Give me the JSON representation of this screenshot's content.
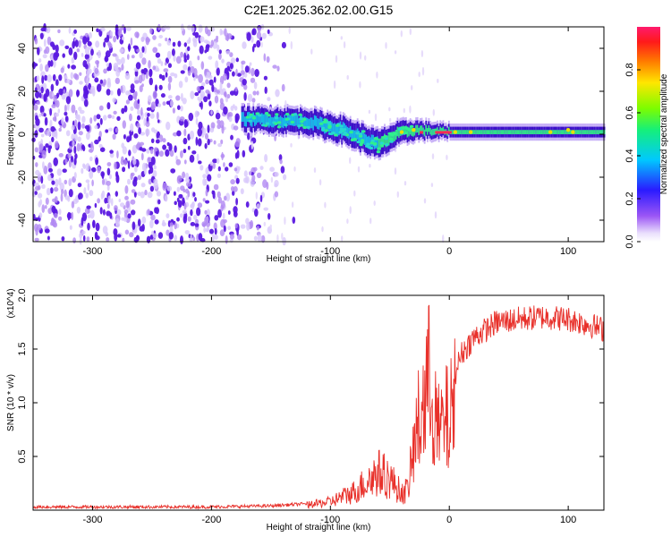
{
  "title": "C2E1.2025.362.02.00.G15",
  "colors": {
    "snr_line": "#e8302a",
    "band_core": "#2fe08a",
    "band_edge": "#3b10c8",
    "noise_dark": "#5a18e0",
    "noise_light": "#d8c8fb",
    "peak": "#ff2a55"
  },
  "chart_data": [
    {
      "type": "heatmap",
      "name_id": "spectrogram",
      "xlabel": "Height of straight line (km)",
      "ylabel": "Frequency (Hz)",
      "xlim": [
        -350,
        130
      ],
      "ylim": [
        -50,
        50
      ],
      "xticks": [
        -300,
        -200,
        -100,
        0,
        100
      ],
      "yticks": [
        -40,
        -20,
        0,
        20,
        40
      ],
      "colorbar": {
        "label": "Normalized spectral amplitude",
        "range": [
          0,
          1
        ],
        "ticks": [
          0.0,
          0.2,
          0.4,
          0.6,
          0.8
        ],
        "colormap": "rainbow (white → violet → blue → cyan → green → yellow → red → magenta)"
      },
      "features": {
        "noise_region_x": [
          -350,
          -170
        ],
        "band_start_x": -175,
        "band_center_freq_at": [
          [
            -170,
            7
          ],
          [
            -120,
            6
          ],
          [
            -90,
            2
          ],
          [
            -60,
            -5
          ],
          [
            -45,
            0
          ],
          [
            -30,
            2
          ],
          [
            0,
            1
          ],
          [
            130,
            1
          ]
        ],
        "band_half_width_hz": [
          [
            -170,
            5
          ],
          [
            -60,
            6
          ],
          [
            -30,
            4
          ],
          [
            0,
            2.5
          ],
          [
            130,
            2.5
          ]
        ]
      }
    },
    {
      "type": "line",
      "name_id": "snr",
      "xlabel": "Height of straight line (km)",
      "ylabel": "SNR (10 * v/v)",
      "ylabel_scale": "(x10^4)",
      "xlim": [
        -350,
        130
      ],
      "ylim": [
        0,
        2.0
      ],
      "xticks": [
        -300,
        -200,
        -100,
        0,
        100
      ],
      "yticks": [
        0.5,
        1.0,
        1.5,
        2.0
      ],
      "ytick_labels": [
        "0.5",
        "1.0",
        "1.5",
        "2.0"
      ],
      "envelope": [
        [
          -350,
          0.03
        ],
        [
          -200,
          0.03
        ],
        [
          -150,
          0.04
        ],
        [
          -120,
          0.06
        ],
        [
          -100,
          0.1
        ],
        [
          -80,
          0.22
        ],
        [
          -60,
          0.45
        ],
        [
          -50,
          0.38
        ],
        [
          -40,
          0.2
        ],
        [
          -35,
          0.25
        ],
        [
          -28,
          0.9
        ],
        [
          -20,
          1.4
        ],
        [
          -15,
          1.6
        ],
        [
          -10,
          0.9
        ],
        [
          0,
          1.1
        ],
        [
          10,
          1.45
        ],
        [
          20,
          1.6
        ],
        [
          40,
          1.75
        ],
        [
          60,
          1.78
        ],
        [
          80,
          1.8
        ],
        [
          100,
          1.78
        ],
        [
          120,
          1.72
        ],
        [
          130,
          1.68
        ]
      ]
    }
  ]
}
